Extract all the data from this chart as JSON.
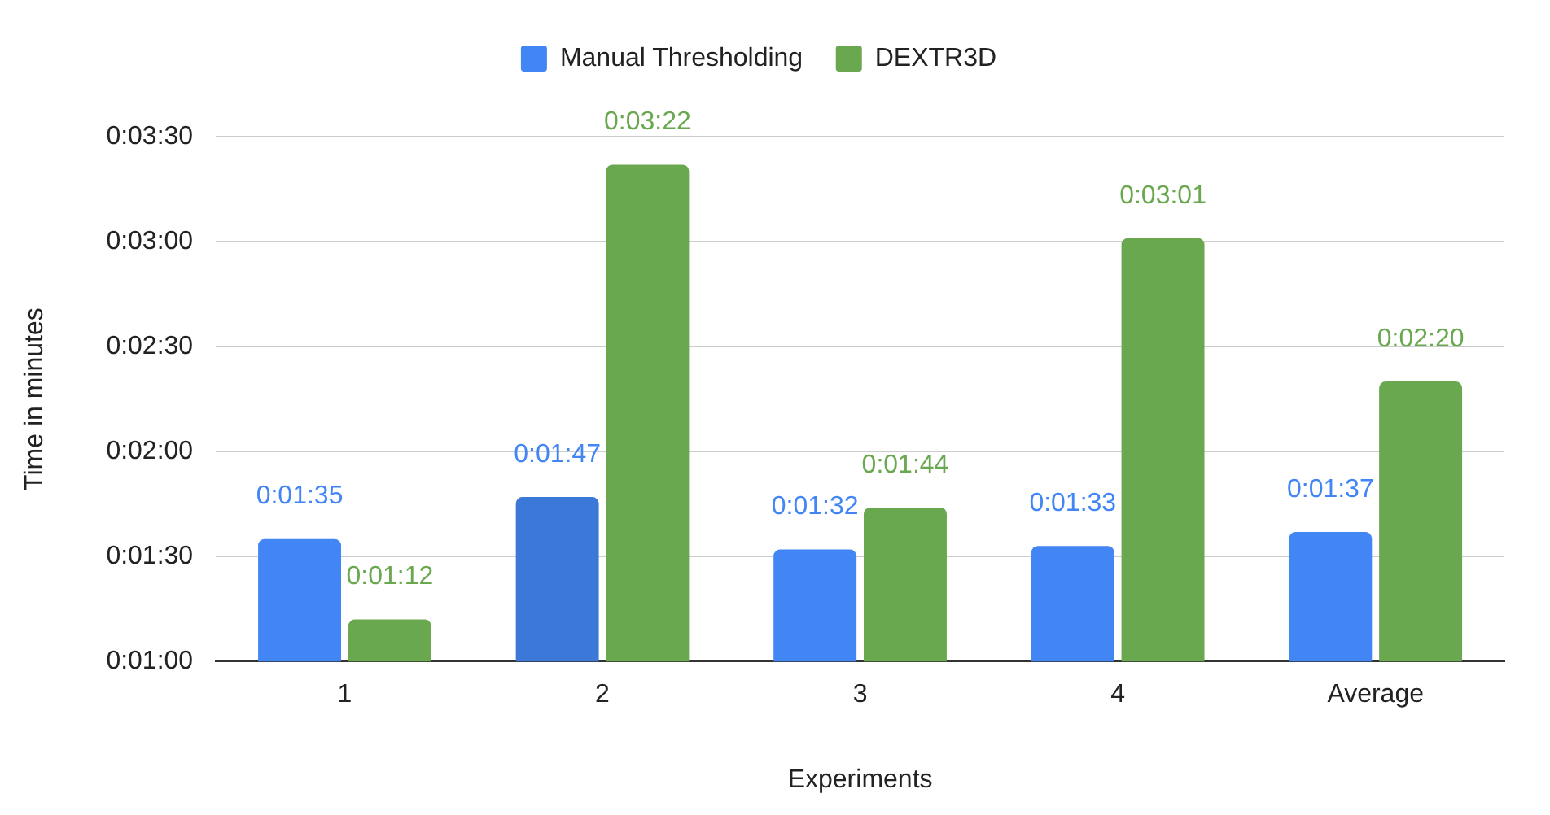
{
  "chart_data": {
    "type": "bar",
    "xlabel": "Experiments",
    "ylabel": "Time in minutes",
    "categories": [
      "1",
      "2",
      "3",
      "4",
      "Average"
    ],
    "series": [
      {
        "name": "Manual Thresholding",
        "color": "#4285f4",
        "colors": [
          "#4285f4",
          "#3c78d8",
          "#4285f4",
          "#4285f4",
          "#4285f4"
        ],
        "values": [
          95,
          107,
          92,
          93,
          97
        ],
        "value_labels": [
          "0:01:35",
          "0:01:47",
          "0:01:32",
          "0:01:33",
          "0:01:37"
        ]
      },
      {
        "name": "DEXTR3D",
        "color": "#6aa84f",
        "values": [
          72,
          202,
          104,
          181,
          140
        ],
        "value_labels": [
          "0:01:12",
          "0:03:22",
          "0:01:44",
          "0:03:01",
          "0:02:20"
        ]
      }
    ],
    "ylim": [
      60,
      210
    ],
    "yticks": [
      {
        "value": 60,
        "label": "0:01:00"
      },
      {
        "value": 90,
        "label": "0:01:30"
      },
      {
        "value": 120,
        "label": "0:02:00"
      },
      {
        "value": 150,
        "label": "0:02:30"
      },
      {
        "value": 180,
        "label": "0:03:00"
      },
      {
        "value": 210,
        "label": "0:03:30"
      }
    ],
    "grid": "y",
    "legend": "top"
  }
}
